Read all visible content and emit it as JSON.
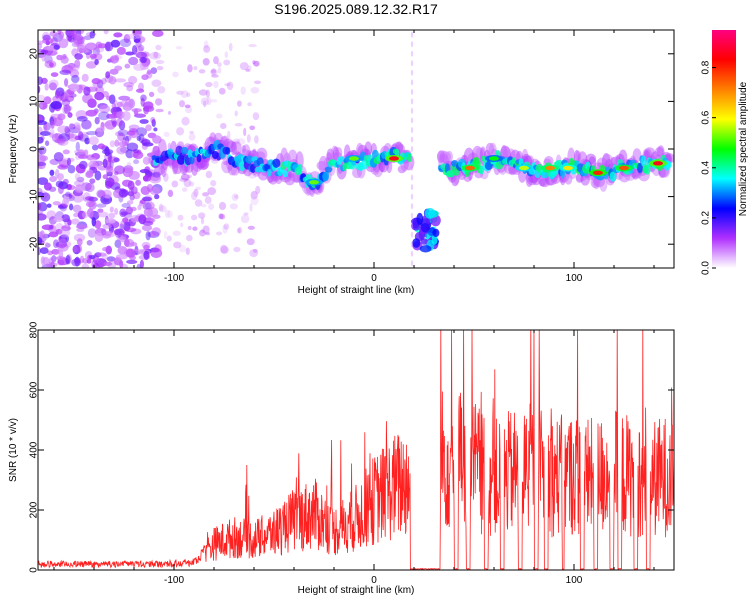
{
  "title": "S196.2025.089.12.32.R17",
  "chart_data": [
    {
      "type": "heatmap",
      "xlabel": "Height of straight line (km)",
      "ylabel": "Frequency (Hz)",
      "xlim": [
        -168,
        150
      ],
      "ylim": [
        -25,
        25
      ],
      "xticks": [
        -100,
        0,
        100
      ],
      "yticks": [
        -20,
        -10,
        0,
        10,
        20
      ],
      "colorbar": {
        "label": "Normalized spectral amplitude",
        "range": [
          0,
          0.95
        ],
        "ticks": [
          0.0,
          0.2,
          0.4,
          0.6,
          0.8
        ],
        "colors": [
          "#ffffff",
          "#b030ff",
          "#0000ff",
          "#00ffff",
          "#00ff00",
          "#ffff00",
          "#ff8000",
          "#ff0000",
          "#ff0080"
        ]
      },
      "ridge": {
        "x": [
          -110,
          -100,
          -90,
          -80,
          -70,
          -60,
          -50,
          -40,
          -30,
          -20,
          -10,
          0,
          10,
          15,
          35,
          50,
          60,
          75,
          85,
          95,
          105,
          115,
          125,
          140,
          148
        ],
        "y": [
          -3,
          -1,
          -2,
          0,
          -2,
          -3,
          -4,
          -4,
          -7,
          -3,
          -3,
          -2,
          -1,
          -2,
          -4,
          -4,
          -2,
          -4,
          -5,
          -4,
          -4,
          -5,
          -4,
          -3,
          -3
        ]
      },
      "gap": [
        18,
        33
      ],
      "side_cluster": {
        "x": 26,
        "y": -17
      }
    },
    {
      "type": "line",
      "xlabel": "Height of straight line (km)",
      "ylabel": "SNR (10 * v/v)",
      "xlim": [
        -168,
        150
      ],
      "ylim": [
        0,
        800
      ],
      "xticks": [
        -100,
        0,
        100
      ],
      "yticks": [
        0,
        200,
        400,
        600,
        800
      ],
      "color": "#ff2020",
      "envelope": {
        "x": [
          -168,
          -110,
          -90,
          -80,
          -70,
          -60,
          -50,
          -40,
          -30,
          -20,
          -10,
          0,
          10,
          20,
          30,
          40,
          50,
          60,
          70,
          80,
          90,
          100,
          110,
          120,
          130,
          140,
          150
        ],
        "y": [
          30,
          30,
          40,
          120,
          150,
          140,
          170,
          230,
          260,
          180,
          230,
          320,
          380,
          420,
          520,
          500,
          480,
          420,
          450,
          470,
          430,
          440,
          420,
          450,
          430,
          420,
          440
        ]
      },
      "dropouts": [
        [
          18,
          33
        ],
        [
          40,
          42
        ],
        [
          46,
          48
        ],
        [
          55,
          57
        ],
        [
          63,
          65
        ],
        [
          72,
          74
        ],
        [
          80,
          82
        ],
        [
          85,
          87
        ],
        [
          94,
          95
        ],
        [
          103,
          105
        ],
        [
          110,
          112
        ],
        [
          118,
          120
        ],
        [
          122,
          124
        ],
        [
          130,
          132
        ],
        [
          136,
          138
        ]
      ]
    }
  ]
}
